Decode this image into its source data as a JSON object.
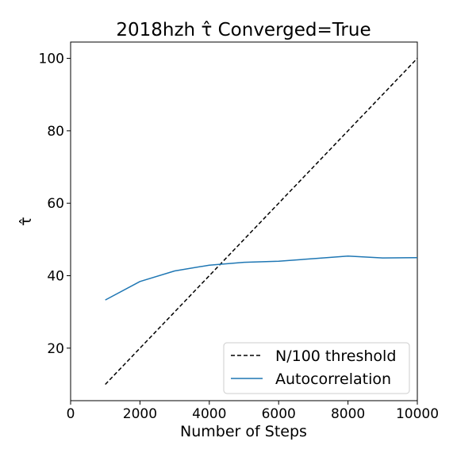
{
  "chart_data": {
    "type": "line",
    "title": "2018hzh τ̂ Converged=True",
    "xlabel": "Number of Steps",
    "ylabel": "τ̂",
    "xlim": [
      0,
      10000
    ],
    "ylim": [
      5.5,
      104.5
    ],
    "x_ticks": [
      0,
      2000,
      4000,
      6000,
      8000,
      10000
    ],
    "y_ticks": [
      20,
      40,
      60,
      80,
      100
    ],
    "grid": false,
    "legend_position": "lower-right",
    "series": [
      {
        "name": "N/100 threshold",
        "color": "#000000",
        "style": "dashed",
        "x": [
          1000,
          10000
        ],
        "y": [
          10,
          100
        ]
      },
      {
        "name": "Autocorrelation",
        "color": "#1f77b4",
        "style": "solid",
        "x": [
          1000,
          2000,
          3000,
          4000,
          5000,
          6000,
          7000,
          8000,
          9000,
          10000
        ],
        "y": [
          33.3,
          38.4,
          41.3,
          42.9,
          43.7,
          44.0,
          44.7,
          45.4,
          44.9,
          45.0
        ]
      }
    ]
  }
}
